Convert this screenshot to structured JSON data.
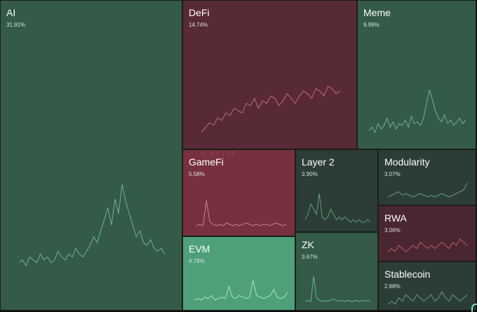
{
  "chart_data": {
    "type": "treemap",
    "watermark": "KAITO",
    "colors": {
      "green_dark": "#2b3d35",
      "green": "#345a48",
      "green_light": "#4ea078",
      "red": "#582a35",
      "red_light": "#76303e",
      "red_dark": "#4a2630"
    },
    "tiles": [
      {
        "name": "AI",
        "percent": "31.91%",
        "value": 31.91,
        "color": "#345a48",
        "line": "#6db593",
        "sparkline": [
          3,
          4,
          2,
          5,
          4,
          3,
          6,
          4,
          5,
          3,
          4,
          7,
          5,
          4,
          6,
          5,
          8,
          6,
          5,
          7,
          9,
          12,
          10,
          14,
          18,
          22,
          16,
          25,
          20,
          30,
          24,
          20,
          16,
          12,
          14,
          10,
          9,
          11,
          8,
          7,
          8,
          6
        ]
      },
      {
        "name": "DeFi",
        "percent": "14.74%",
        "value": 14.74,
        "color": "#582a35",
        "line": "#c46a7c",
        "sparkline": [
          4,
          6,
          8,
          7,
          10,
          9,
          12,
          11,
          14,
          13,
          12,
          16,
          15,
          18,
          14,
          17,
          16,
          19,
          18,
          15,
          17,
          20,
          18,
          16,
          19,
          21,
          20,
          18,
          22,
          21,
          19,
          23,
          22,
          20,
          21
        ]
      },
      {
        "name": "Meme",
        "percent": "9.99%",
        "value": 9.99,
        "color": "#345a48",
        "line": "#6db593",
        "sparkline": [
          5,
          7,
          4,
          9,
          6,
          8,
          12,
          7,
          10,
          6,
          9,
          8,
          11,
          7,
          13,
          9,
          10,
          8,
          12,
          20,
          28,
          22,
          16,
          12,
          10,
          14,
          9,
          11,
          8,
          10,
          12,
          9,
          11
        ]
      },
      {
        "name": "GameFi",
        "percent": "5.58%",
        "value": 5.58,
        "color": "#76303e",
        "line": "#d47f8f",
        "sparkline": [
          2,
          3,
          2,
          20,
          5,
          3,
          2,
          3,
          2,
          4,
          3,
          2,
          3,
          2,
          3,
          4,
          3,
          2,
          3,
          2,
          3,
          3,
          2,
          3,
          4,
          3,
          2,
          3
        ]
      },
      {
        "name": "EVM",
        "percent": "4.79%",
        "value": 4.79,
        "color": "#4ea078",
        "line": "#a8e6c4",
        "sparkline": [
          3,
          4,
          3,
          5,
          4,
          6,
          3,
          4,
          5,
          4,
          12,
          5,
          4,
          6,
          5,
          4,
          5,
          16,
          6,
          5,
          4,
          5,
          6,
          10,
          5,
          4,
          5,
          8
        ]
      },
      {
        "name": "Layer 2",
        "percent": "3.90%",
        "value": 3.9,
        "color": "#2b3d35",
        "line": "#5f9e82",
        "sparkline": [
          4,
          6,
          10,
          8,
          6,
          14,
          5,
          4,
          5,
          8,
          6,
          4,
          5,
          4,
          5,
          4,
          3,
          4,
          3,
          4,
          3,
          3,
          4,
          3
        ]
      },
      {
        "name": "ZK",
        "percent": "3.67%",
        "value": 3.67,
        "color": "#345a48",
        "line": "#6db593",
        "sparkline": [
          3,
          4,
          3,
          24,
          6,
          4,
          3,
          4,
          3,
          4,
          5,
          4,
          3,
          4,
          3,
          4,
          3,
          3,
          4,
          3,
          4,
          3,
          4,
          3
        ]
      },
      {
        "name": "Modularity",
        "percent": "3.07%",
        "value": 3.07,
        "color": "#2b3d35",
        "line": "#5f9e82",
        "sparkline": [
          4,
          5,
          6,
          7,
          5,
          6,
          5,
          4,
          5,
          6,
          5,
          4,
          5,
          4,
          5,
          6,
          5,
          4,
          5,
          6,
          7,
          8,
          12
        ]
      },
      {
        "name": "RWA",
        "percent": "3.06%",
        "value": 3.06,
        "color": "#4a2630",
        "line": "#b85e72",
        "sparkline": [
          3,
          4,
          3,
          5,
          4,
          3,
          4,
          5,
          4,
          6,
          5,
          4,
          5,
          4,
          5,
          6,
          5,
          4,
          6,
          5,
          7,
          6,
          5
        ]
      },
      {
        "name": "Stablecoin",
        "percent": "2.68%",
        "value": 2.68,
        "color": "#2b3d35",
        "line": "#5f9e82",
        "sparkline": [
          3,
          4,
          3,
          5,
          4,
          6,
          5,
          4,
          6,
          5,
          4,
          5,
          6,
          4,
          5,
          7,
          5,
          4,
          6,
          5,
          4,
          5,
          6
        ]
      }
    ]
  }
}
